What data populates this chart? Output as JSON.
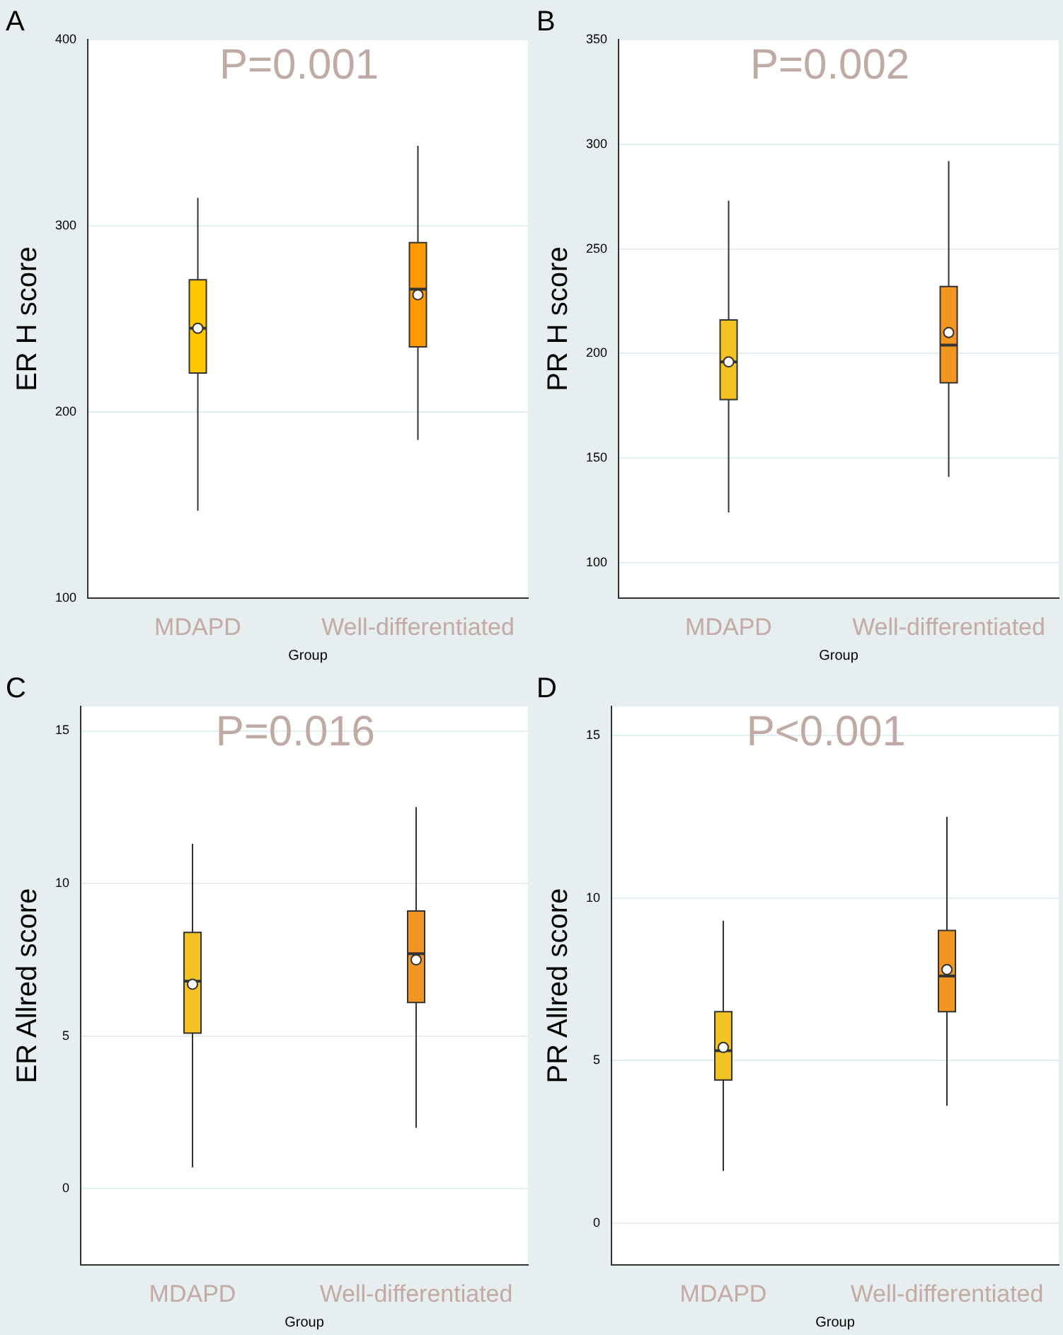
{
  "chart_data": [
    {
      "type": "box",
      "title": "A",
      "xlabel": "Group",
      "ylabel": "ER H score",
      "categories": [
        "MDAPD",
        "Well-differentiated"
      ],
      "colors": [
        "#ffc800",
        "#ff9900"
      ],
      "boxes": [
        {
          "low": 147,
          "q1": 221,
          "median": 245,
          "q3": 271,
          "high": 315,
          "mean": 245
        },
        {
          "low": 185,
          "q1": 235,
          "median": 266,
          "q3": 291,
          "high": 343,
          "mean": 263
        }
      ],
      "ylim": [
        100,
        400
      ],
      "yticks": [
        100,
        200,
        300,
        400
      ],
      "grid": "y",
      "annotations": [
        "P=0.001"
      ]
    },
    {
      "type": "box",
      "title": "B",
      "xlabel": "Group",
      "ylabel": "PR H score",
      "categories": [
        "MDAPD",
        "Well-differentiated"
      ],
      "colors": [
        "#f2c322",
        "#f29622"
      ],
      "boxes": [
        {
          "low": 124,
          "q1": 178,
          "median": 196,
          "q3": 216,
          "high": 273,
          "mean": 196
        },
        {
          "low": 141,
          "q1": 186,
          "median": 204,
          "q3": 232,
          "high": 292,
          "mean": 210
        }
      ],
      "ylim": [
        83,
        350
      ],
      "yticks": [
        100,
        150,
        200,
        250,
        300,
        350
      ],
      "grid": "y",
      "annotations": [
        "P=0.002"
      ]
    },
    {
      "type": "box",
      "title": "C",
      "xlabel": "Group",
      "ylabel": "ER Allred score",
      "categories": [
        "MDAPD",
        "Well-differentiated"
      ],
      "colors": [
        "#f2c322",
        "#f29622"
      ],
      "boxes": [
        {
          "low": 0.7,
          "q1": 5.1,
          "median": 6.8,
          "q3": 8.4,
          "high": 11.3,
          "mean": 6.7
        },
        {
          "low": 2.0,
          "q1": 6.1,
          "median": 7.7,
          "q3": 9.1,
          "high": 12.5,
          "mean": 7.5
        }
      ],
      "ylim": [
        -2.5,
        15.8
      ],
      "yticks": [
        0,
        5,
        10,
        15
      ],
      "grid": "y",
      "annotations": [
        "P=0.016"
      ]
    },
    {
      "type": "box",
      "title": "D",
      "xlabel": "Group",
      "ylabel": "PR Allred score",
      "categories": [
        "MDAPD",
        "Well-differentiated"
      ],
      "colors": [
        "#f2c322",
        "#f29622"
      ],
      "boxes": [
        {
          "low": 1.6,
          "q1": 4.4,
          "median": 5.3,
          "q3": 6.5,
          "high": 9.3,
          "mean": 5.4
        },
        {
          "low": 3.6,
          "q1": 6.5,
          "median": 7.6,
          "q3": 9.0,
          "high": 12.5,
          "mean": 7.8
        }
      ],
      "ylim": [
        -1.3,
        15.9
      ],
      "yticks": [
        0,
        5,
        10,
        15
      ],
      "grid": "y",
      "annotations": [
        "P<0.001"
      ]
    }
  ]
}
